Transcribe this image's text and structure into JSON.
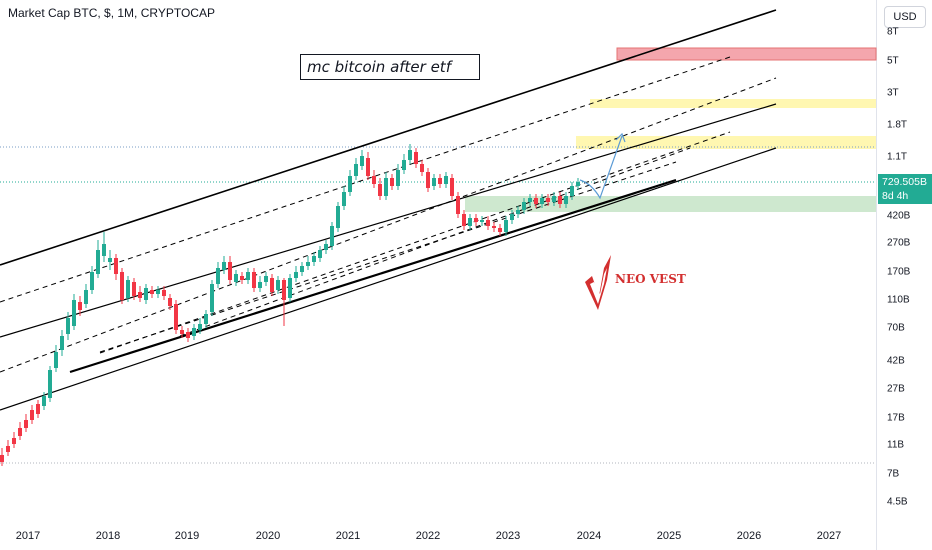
{
  "header": {
    "title": "Market Cap BTC, $, 1M, CRYPTOCAP"
  },
  "currency_button": "USD",
  "annotation": "mc bitcoin after etf",
  "logo": {
    "text": "NEO VEST"
  },
  "price_tag": {
    "value": "729.505B",
    "countdown": "8d 4h"
  },
  "colors": {
    "up": "#22ab94",
    "down": "#f23645",
    "channel": "#000000",
    "projection": "#5b9bd5",
    "red_zone": "#f4a6ad",
    "yellow_zone": "#fff59d",
    "green_zone": "#a5d6a7"
  },
  "chart_data": {
    "type": "candlestick",
    "title": "Market Cap BTC, $, 1M, CRYPTOCAP",
    "x_range": [
      "2016-11",
      "2027-08"
    ],
    "y_scale": "log",
    "y_tick_labels": [
      "8T",
      "5T",
      "3T",
      "1.8T",
      "1.1T",
      "729.505B",
      "420B",
      "270B",
      "170B",
      "110B",
      "70B",
      "42B",
      "27B",
      "17B",
      "11B",
      "7B",
      "4.5B"
    ],
    "x_tick_labels": [
      "2017",
      "2018",
      "2019",
      "2020",
      "2021",
      "2022",
      "2023",
      "2024",
      "2025",
      "2026",
      "2027"
    ],
    "last_value": "729.505B",
    "zones": [
      {
        "color": "red",
        "from": "5.3T",
        "to": "6.3T"
      },
      {
        "color": "yellow",
        "from": "2.2T",
        "to": "2.5T"
      },
      {
        "color": "yellow",
        "from": "1.3T",
        "to": "1.6T"
      },
      {
        "color": "green",
        "from": "560B",
        "to": "600B"
      }
    ]
  }
}
